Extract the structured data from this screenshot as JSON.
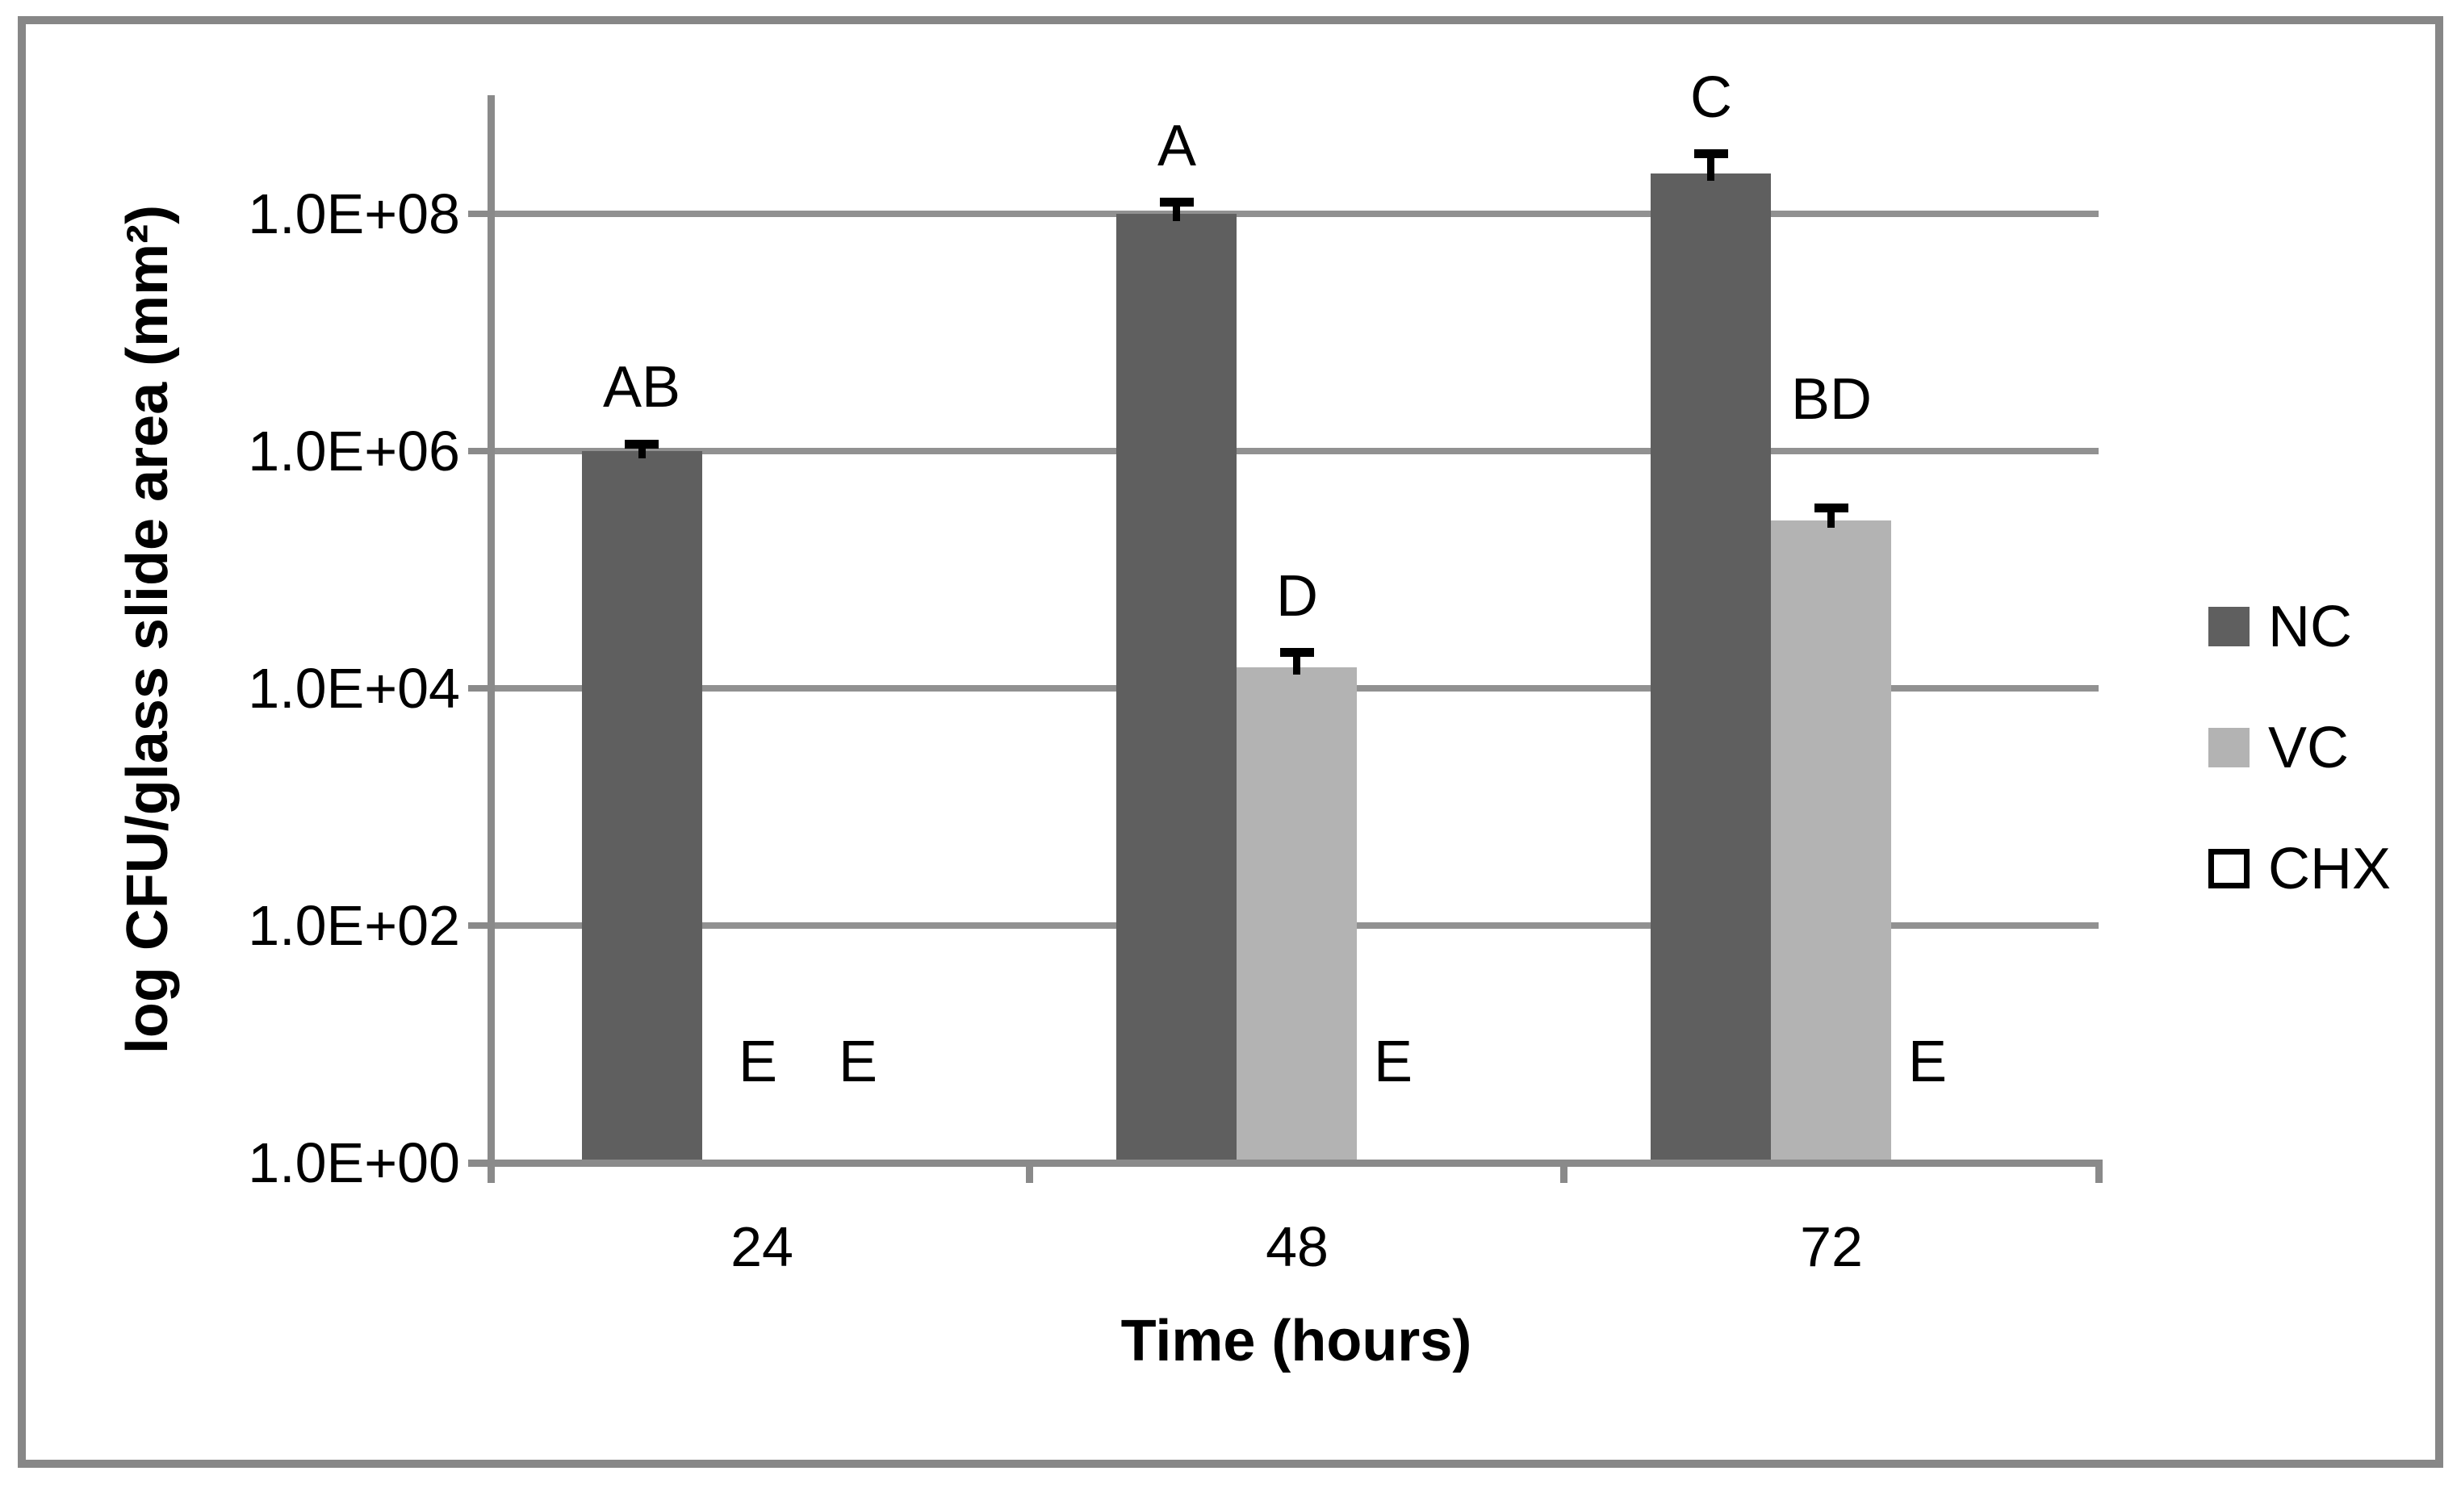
{
  "chart_data": {
    "type": "bar",
    "title": "",
    "xlabel": "Time (hours)",
    "ylabel": "log CFU/glass slide area (mm²)",
    "yscale": "log",
    "ylim": [
      1,
      1000000000.0
    ],
    "ytick_values": [
      1,
      100,
      10000,
      1000000,
      100000000
    ],
    "ytick_labels": [
      "1.0E+00",
      "1.0E+02",
      "1.0E+04",
      "1.0E+06",
      "1.0E+08"
    ],
    "categories": [
      "24",
      "48",
      "72"
    ],
    "series": [
      {
        "name": "NC",
        "color": "#5f5f5f",
        "border_color": null,
        "values": [
          1000000.0,
          100000000.0,
          220000000.0
        ],
        "error_high": [
          1150000.0,
          125000000.0,
          320000000.0
        ],
        "sig_letters": [
          "AB",
          "A",
          "C"
        ]
      },
      {
        "name": "VC",
        "color": "#b3b3b3",
        "border_color": null,
        "values": [
          null,
          15000.0,
          260000.0
        ],
        "error_high": [
          null,
          20000.0,
          330000.0
        ],
        "sig_letters": [
          "E",
          "D",
          "BD"
        ]
      },
      {
        "name": "CHX",
        "color": "#ffffff",
        "border_color": "#000000",
        "values": [
          null,
          null,
          null
        ],
        "error_high": [
          null,
          null,
          null
        ],
        "sig_letters": [
          "E",
          "E",
          "E"
        ]
      }
    ],
    "legend_position": "right",
    "grid": true,
    "error_bars": "upper only, black caps",
    "colors": {
      "grid": "#919191",
      "axis": "#8a8a8a",
      "frame_border": "#878787",
      "text": "#000000",
      "background": "#ffffff"
    }
  }
}
